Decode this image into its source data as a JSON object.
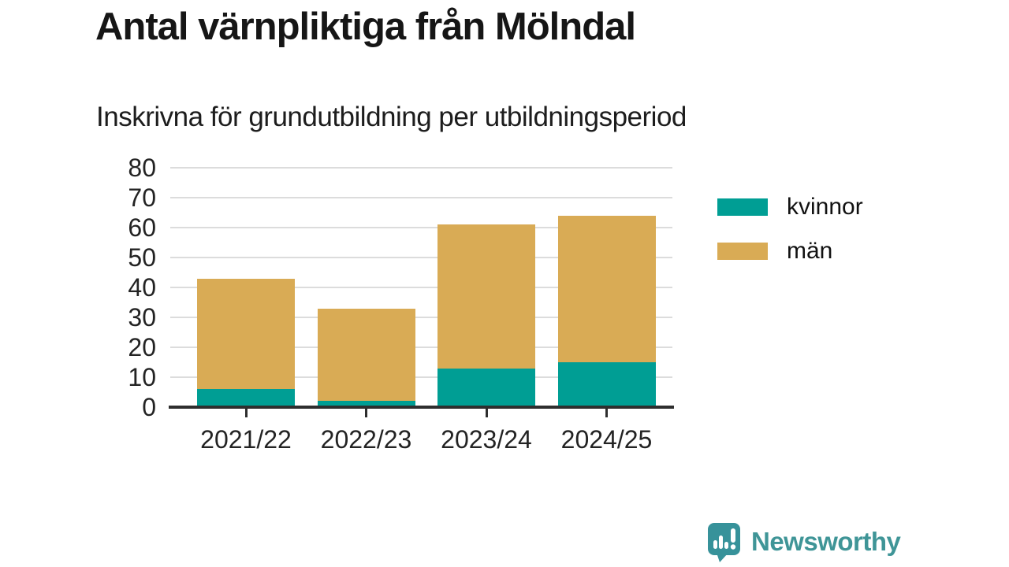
{
  "chart_data": {
    "type": "bar",
    "stacked": true,
    "title": "Antal värnpliktiga från Mölndal",
    "subtitle": "Inskrivna för grundutbildning per utbildningsperiod",
    "categories": [
      "2021/22",
      "2022/23",
      "2023/24",
      "2024/25"
    ],
    "series": [
      {
        "name": "kvinnor",
        "color": "#009e94",
        "values": [
          6,
          2,
          13,
          15
        ]
      },
      {
        "name": "män",
        "color": "#d9ab55",
        "values": [
          37,
          31,
          48,
          49
        ]
      }
    ],
    "totals": [
      43,
      33,
      61,
      64
    ],
    "xlabel": "",
    "ylabel": "",
    "ylim": [
      0,
      80
    ],
    "yticks": [
      0,
      10,
      20,
      30,
      40,
      50,
      60,
      70,
      80
    ],
    "grid": true,
    "legend_position": "right"
  },
  "colors": {
    "gridline": "#dcdcdc",
    "axis": "#2e2e2e",
    "title_text": "#161616",
    "tick_text": "#232323",
    "brand_teal": "#3f9597"
  },
  "branding": {
    "logo_text": "Newsworthy",
    "logo_icon": "speech-bubble-bar-chart-icon"
  }
}
